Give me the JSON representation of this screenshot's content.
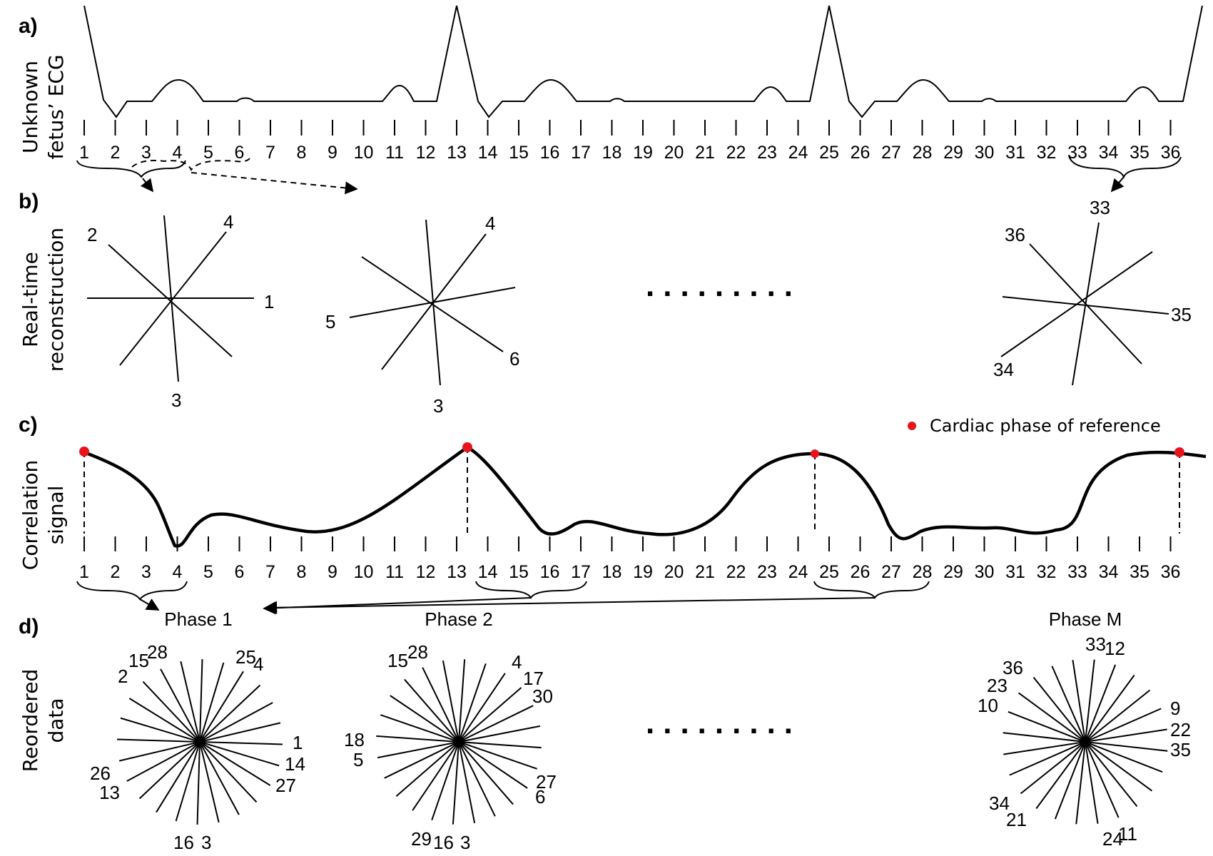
{
  "panels": {
    "a": {
      "letter": "a)",
      "label_lines": [
        "Unknown",
        "fetus’ ECG"
      ]
    },
    "b": {
      "letter": "b)",
      "label_lines": [
        "Real-time",
        "reconstruction"
      ]
    },
    "c": {
      "letter": "c)",
      "label_lines": [
        "Correlation",
        "signal"
      ]
    },
    "d": {
      "letter": "d)",
      "label_lines": [
        "Reordered",
        "data"
      ]
    }
  },
  "frame_numbers": [
    "1",
    "2",
    "3",
    "4",
    "5",
    "6",
    "7",
    "8",
    "9",
    "10",
    "11",
    "12",
    "13",
    "14",
    "15",
    "16",
    "17",
    "18",
    "19",
    "20",
    "21",
    "22",
    "23",
    "24",
    "25",
    "26",
    "27",
    "28",
    "29",
    "30",
    "31",
    "32",
    "33",
    "34",
    "35",
    "36"
  ],
  "realtime_reconstructions": [
    {
      "labels": [
        "2",
        "4",
        "1",
        "3"
      ]
    },
    {
      "labels": [
        "4",
        "5",
        "6",
        "3"
      ]
    },
    {
      "labels": [
        "33",
        "36",
        "35",
        "34"
      ]
    }
  ],
  "legend": {
    "text": "Cardiac phase of reference",
    "marker_color": "#e8141c"
  },
  "phases": [
    {
      "title": "Phase 1",
      "labels": [
        "28",
        "15",
        "2",
        "25",
        "4",
        "1",
        "14",
        "27",
        "26",
        "13",
        "16",
        "3"
      ]
    },
    {
      "title": "Phase 2",
      "labels": [
        "28",
        "15",
        "4",
        "17",
        "30",
        "18",
        "5",
        "27",
        "6",
        "29",
        "16",
        "3"
      ]
    },
    {
      "title": "Phase M",
      "labels": [
        "33",
        "12",
        "36",
        "23",
        "10",
        "9",
        "22",
        "35",
        "34",
        "21",
        "24",
        "11"
      ]
    }
  ],
  "ellipsis": "........."
}
